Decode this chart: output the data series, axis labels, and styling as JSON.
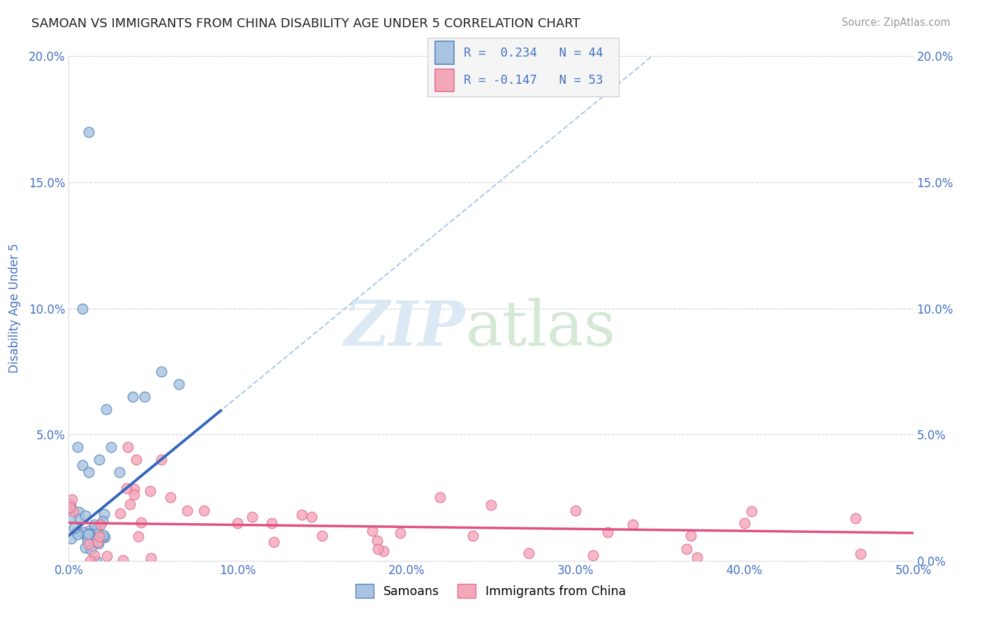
{
  "title": "SAMOAN VS IMMIGRANTS FROM CHINA DISABILITY AGE UNDER 5 CORRELATION CHART",
  "source": "Source: ZipAtlas.com",
  "xlim": [
    0.0,
    0.5
  ],
  "ylim": [
    0.0,
    0.2
  ],
  "color_samoan": "#a8c4e0",
  "color_samoan_edge": "#5585c0",
  "color_samoan_line": "#3366bb",
  "color_samoan_dash": "#aaccee",
  "color_china": "#f4a7b9",
  "color_china_edge": "#e07090",
  "color_china_line": "#e05080",
  "background_color": "#ffffff",
  "grid_color": "#cccccc",
  "tick_color": "#4472c4",
  "watermark_zip_color": "#dce9f5",
  "watermark_atlas_color": "#d5e8d5",
  "legend_bg": "#f5f5f5",
  "legend_edge": "#cccccc",
  "samoan_slope": 0.55,
  "samoan_intercept": 0.01,
  "china_slope": -0.008,
  "china_intercept": 0.015
}
